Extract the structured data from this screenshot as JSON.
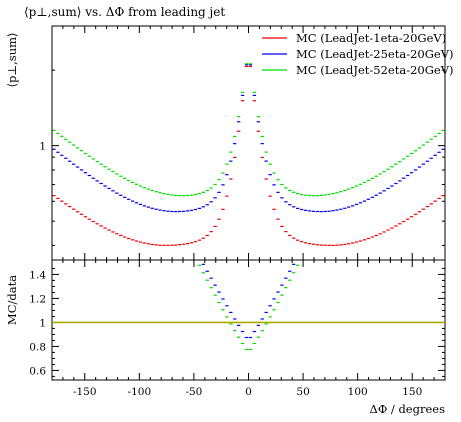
{
  "chart_data": {
    "type": "line",
    "title": "⟨p⊥,sum⟩ vs. ΔΦ from leading jet",
    "xlabel": "ΔΦ / degrees",
    "top_panel": {
      "ylabel": "⟨p⊥,sum⟩",
      "yscale": "log",
      "ylim": [
        0.35,
        3.0
      ],
      "yticks": [
        {
          "value": 1,
          "label": "1"
        }
      ]
    },
    "ratio_panel": {
      "ylabel": "MC/data",
      "ylim": [
        0.52,
        1.52
      ],
      "yticks": [
        {
          "value": 0.6,
          "label": "0.6"
        },
        {
          "value": 0.8,
          "label": "0.8"
        },
        {
          "value": 1.0,
          "label": "1"
        },
        {
          "value": 1.2,
          "label": "1.2"
        },
        {
          "value": 1.4,
          "label": "1.4"
        }
      ],
      "reference_line": 1.0
    },
    "xlim": [
      -180,
      180
    ],
    "xticks": [
      {
        "value": -150,
        "label": "-150"
      },
      {
        "value": -100,
        "label": "-100"
      },
      {
        "value": -50,
        "label": "-50"
      },
      {
        "value": 0,
        "label": "0"
      },
      {
        "value": 50,
        "label": "50"
      },
      {
        "value": 100,
        "label": "100"
      },
      {
        "value": 150,
        "label": "150"
      }
    ],
    "legend_position": "top-right",
    "series": [
      {
        "name": "MC (LeadJet-1eta-20GeV)",
        "color": "#ee0000",
        "profile": {
          "plateau": 0.4,
          "plateau_center": 75,
          "plateau_width": 75,
          "peak": 2.45,
          "far_rise": 0.24,
          "near_rise": 0.15
        },
        "ratio": null
      },
      {
        "name": "MC (LeadJet-25eta-20GeV)",
        "color": "#0000ee",
        "profile": {
          "plateau": 0.545,
          "plateau_center": 65,
          "plateau_width": 75,
          "peak": 2.45,
          "far_rise": 0.32,
          "near_rise": 0.15
        },
        "ratio": {
          "min": 0.85,
          "center_width": 33
        }
      },
      {
        "name": "MC (LeadJet-52eta-20GeV)",
        "color": "#00dd00",
        "profile": {
          "plateau": 0.63,
          "plateau_center": 58,
          "plateau_width": 75,
          "peak": 2.45,
          "far_rise": 0.34,
          "near_rise": 0.15
        },
        "ratio": {
          "min": 0.75,
          "center_width": 38
        }
      }
    ],
    "reference_color": "#aaaa00"
  }
}
